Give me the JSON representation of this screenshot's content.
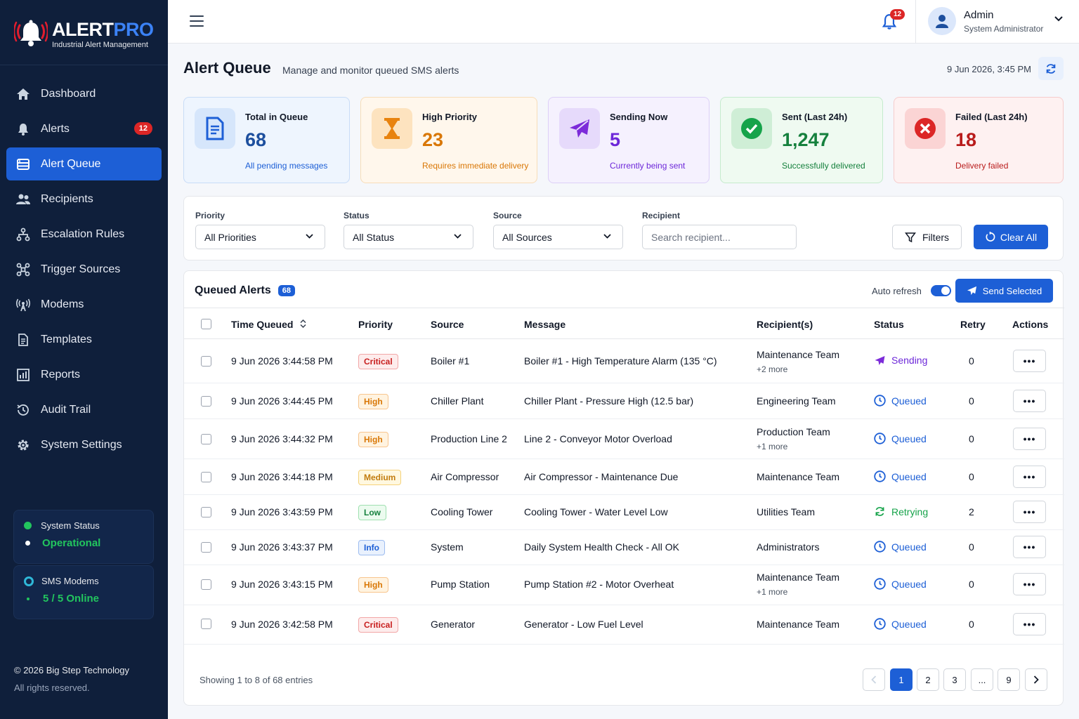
{
  "brand": {
    "name_a": "ALERT",
    "name_b": "PRO",
    "subtitle": "Industrial Alert Management"
  },
  "sidebar": {
    "items": [
      {
        "label": "Dashboard",
        "icon": "home-icon"
      },
      {
        "label": "Alerts",
        "icon": "bell-icon",
        "badge": "12"
      },
      {
        "label": "Alert Queue",
        "icon": "queue-icon",
        "active": true
      },
      {
        "label": "Recipients",
        "icon": "users-icon"
      },
      {
        "label": "Escalation Rules",
        "icon": "hierarchy-icon"
      },
      {
        "label": "Trigger Sources",
        "icon": "nodes-icon"
      },
      {
        "label": "Modems",
        "icon": "antenna-icon"
      },
      {
        "label": "Templates",
        "icon": "document-icon"
      },
      {
        "label": "Reports",
        "icon": "chart-icon"
      },
      {
        "label": "Audit Trail",
        "icon": "history-icon"
      },
      {
        "label": "System Settings",
        "icon": "gear-icon"
      }
    ],
    "system_status": {
      "label": "System Status",
      "value": "Operational"
    },
    "sms_modems": {
      "label": "SMS Modems",
      "value": "5 / 5 Online"
    },
    "copyright": "© 2026 Big Step Technology",
    "rights": "All rights reserved."
  },
  "topbar": {
    "notifications": "12",
    "user_name": "Admin",
    "user_role": "System Administrator"
  },
  "header": {
    "title": "Alert Queue",
    "subtitle": "Manage and monitor queued SMS alerts",
    "datetime": "9 Jun 2026, 3:45 PM"
  },
  "stats": [
    {
      "title": "Total in Queue",
      "value": "68",
      "desc": "All pending messages"
    },
    {
      "title": "High Priority",
      "value": "23",
      "desc": "Requires immediate delivery"
    },
    {
      "title": "Sending Now",
      "value": "5",
      "desc": "Currently being sent"
    },
    {
      "title": "Sent (Last 24h)",
      "value": "1,247",
      "desc": "Successfully delivered"
    },
    {
      "title": "Failed (Last 24h)",
      "value": "18",
      "desc": "Delivery failed"
    }
  ],
  "filters": {
    "priority_label": "Priority",
    "priority_value": "All Priorities",
    "status_label": "Status",
    "status_value": "All Status",
    "source_label": "Source",
    "source_value": "All Sources",
    "recipient_label": "Recipient",
    "recipient_placeholder": "Search recipient...",
    "filters_button": "Filters",
    "clear_button": "Clear All"
  },
  "table": {
    "title": "Queued Alerts",
    "count": "68",
    "auto_refresh": "Auto refresh",
    "auto_refresh_on": true,
    "send_button": "Send Selected",
    "columns": [
      "Time Queued",
      "Priority",
      "Source",
      "Message",
      "Recipient(s)",
      "Status",
      "Retry",
      "Actions"
    ],
    "rows": [
      {
        "time": "9 Jun 2026 3:44:58 PM",
        "priority": "Critical",
        "source": "Boiler #1",
        "message": "Boiler #1 - High Temperature Alarm (135 °C)",
        "recipient": "Maintenance Team",
        "more": "+2 more",
        "status": "Sending",
        "retry": "0"
      },
      {
        "time": "9 Jun 2026 3:44:45 PM",
        "priority": "High",
        "source": "Chiller Plant",
        "message": "Chiller Plant - Pressure High (12.5 bar)",
        "recipient": "Engineering Team",
        "more": "",
        "status": "Queued",
        "retry": "0"
      },
      {
        "time": "9 Jun 2026 3:44:32 PM",
        "priority": "High",
        "source": "Production Line 2",
        "message": "Line 2 - Conveyor Motor Overload",
        "recipient": "Production Team",
        "more": "+1 more",
        "status": "Queued",
        "retry": "0"
      },
      {
        "time": "9 Jun 2026 3:44:18 PM",
        "priority": "Medium",
        "source": "Air Compressor",
        "message": "Air Compressor - Maintenance Due",
        "recipient": "Maintenance Team",
        "more": "",
        "status": "Queued",
        "retry": "0"
      },
      {
        "time": "9 Jun 2026 3:43:59 PM",
        "priority": "Low",
        "source": "Cooling Tower",
        "message": "Cooling Tower - Water Level Low",
        "recipient": "Utilities Team",
        "more": "",
        "status": "Retrying",
        "retry": "2"
      },
      {
        "time": "9 Jun 2026 3:43:37 PM",
        "priority": "Info",
        "source": "System",
        "message": "Daily System Health Check - All OK",
        "recipient": "Administrators",
        "more": "",
        "status": "Queued",
        "retry": "0"
      },
      {
        "time": "9 Jun 2026 3:43:15 PM",
        "priority": "High",
        "source": "Pump Station",
        "message": "Pump Station #2 - Motor Overheat",
        "recipient": "Maintenance Team",
        "more": "+1 more",
        "status": "Queued",
        "retry": "0"
      },
      {
        "time": "9 Jun 2026 3:42:58 PM",
        "priority": "Critical",
        "source": "Generator",
        "message": "Generator - Low Fuel Level",
        "recipient": "Maintenance Team",
        "more": "",
        "status": "Queued",
        "retry": "0"
      }
    ],
    "actions_label": "•••"
  },
  "pagination": {
    "showing": "Showing 1 to 8 of 68 entries",
    "pages": [
      "1",
      "2",
      "3",
      "...",
      "9"
    ],
    "current": "1"
  },
  "colors": {
    "sidebar_bg": "#0f1f3b",
    "accent": "#1d5fd6",
    "success": "#22c55e",
    "danger": "#dc2626"
  }
}
